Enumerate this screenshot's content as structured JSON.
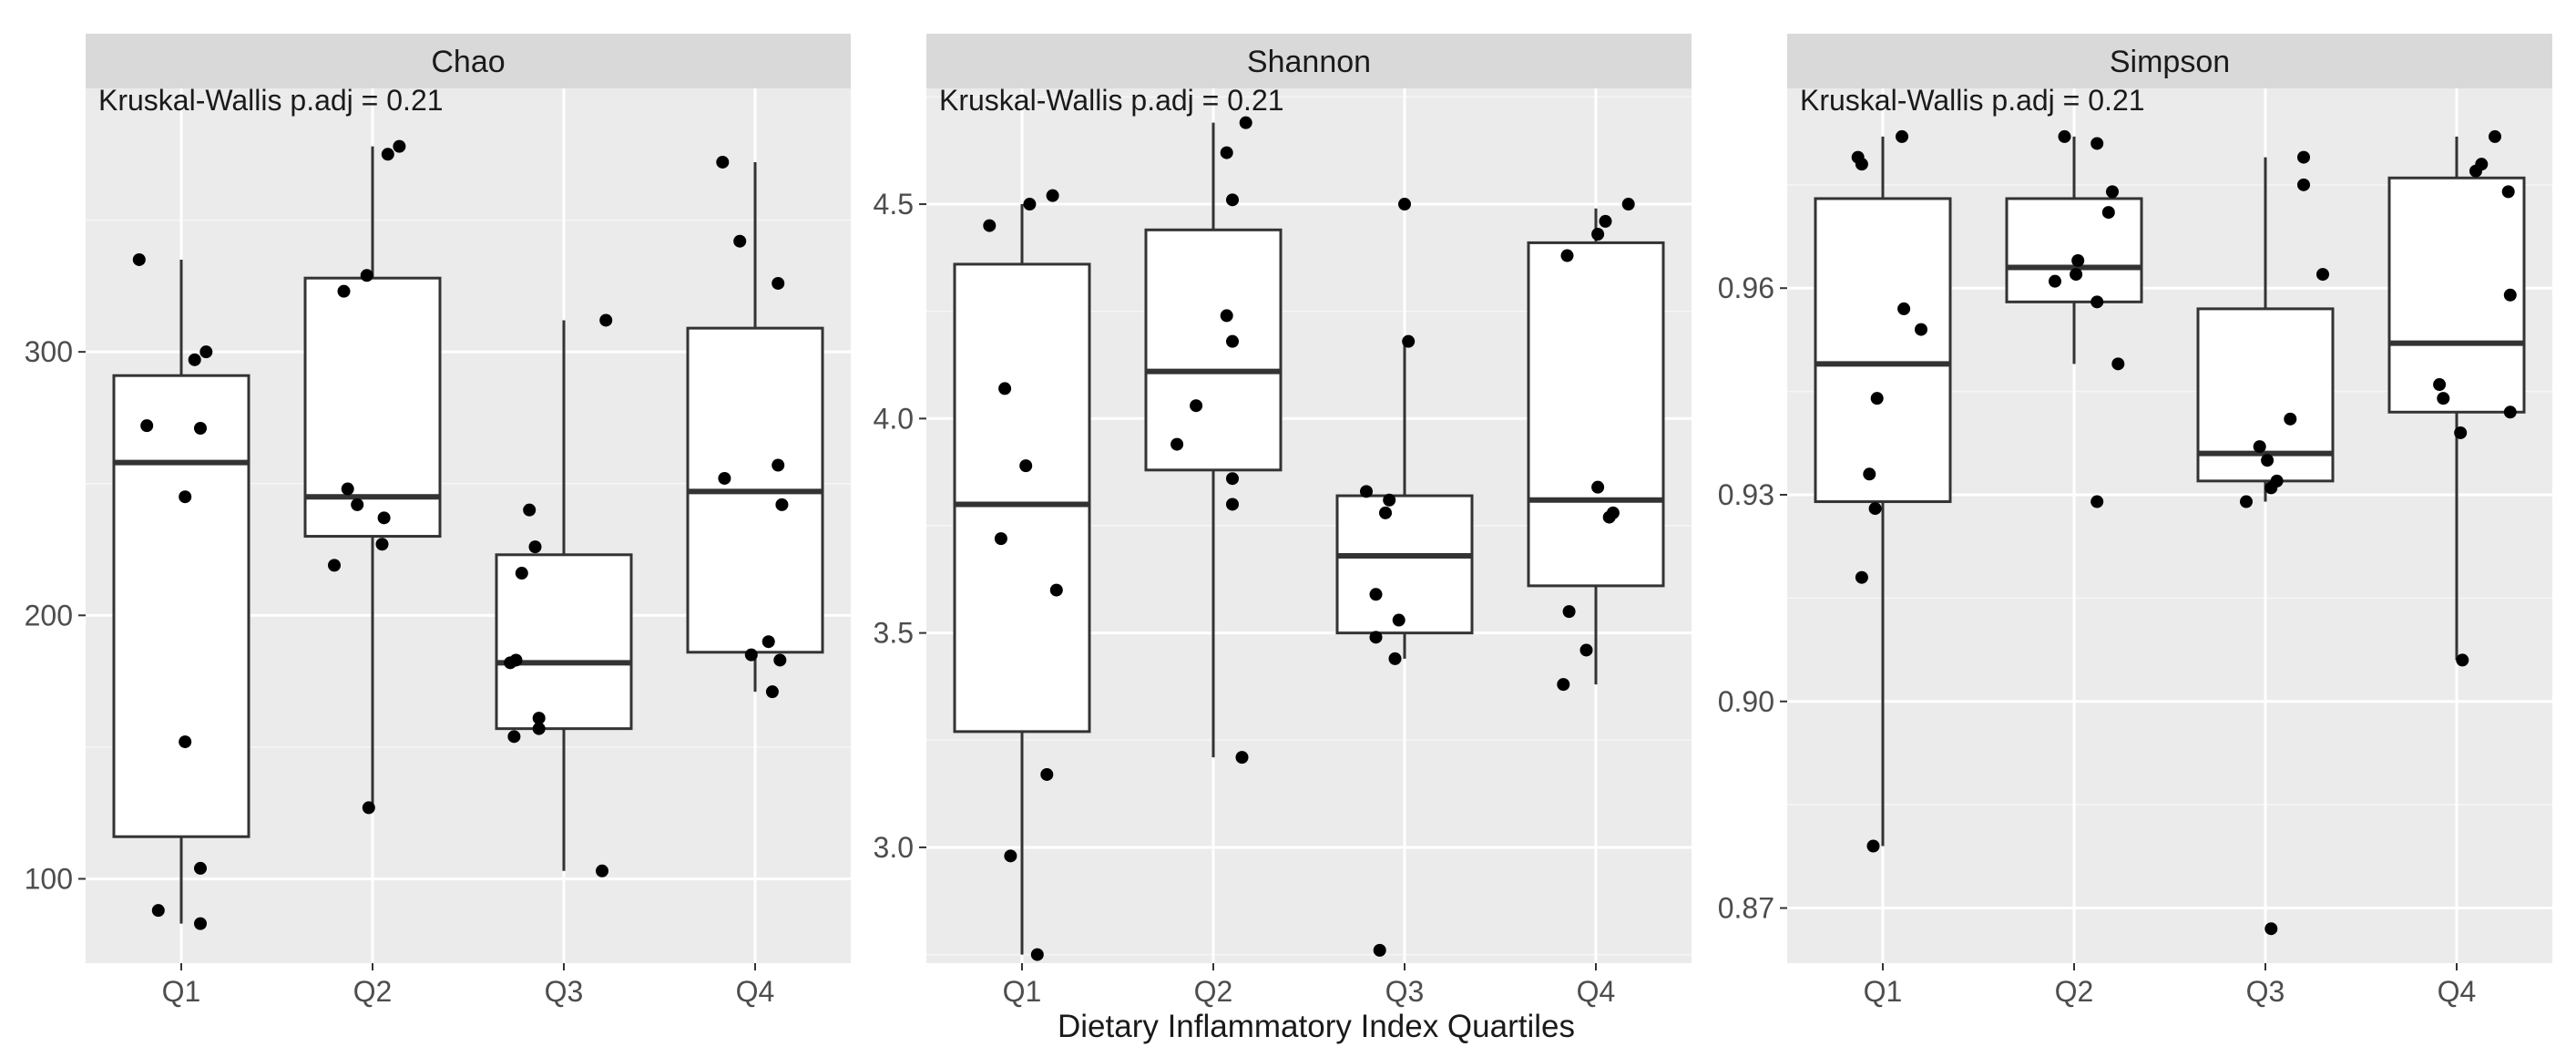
{
  "chart_data": {
    "type": "box",
    "xlabel": "Dietary Inflammatory Index Quartiles",
    "categories": [
      "Q1",
      "Q2",
      "Q3",
      "Q4"
    ],
    "panels": [
      {
        "title": "Chao",
        "annotation": "Kruskal-Wallis p.adj = 0.21",
        "ylim": [
          68,
          400
        ],
        "yticks": [
          100,
          200,
          300
        ],
        "ytick_labels": [
          "100",
          "200",
          "300"
        ],
        "boxes": [
          {
            "category": "Q1",
            "whisker_low": 83,
            "q1": 116,
            "median": 258,
            "q3": 291,
            "whisker_high": 335
          },
          {
            "category": "Q2",
            "whisker_low": 127,
            "q1": 230,
            "median": 245,
            "q3": 328,
            "whisker_high": 378
          },
          {
            "category": "Q3",
            "whisker_low": 103,
            "q1": 157,
            "median": 182,
            "q3": 223,
            "whisker_high": 312
          },
          {
            "category": "Q4",
            "whisker_low": 171,
            "q1": 186,
            "median": 247,
            "q3": 309,
            "whisker_high": 372
          }
        ],
        "points": [
          {
            "category": "Q1",
            "values": [
              335,
              300,
              297,
              272,
              271,
              245,
              152,
              104,
              88,
              83
            ],
            "jitter": [
              -0.22,
              0.13,
              0.07,
              -0.18,
              0.1,
              0.02,
              0.02,
              0.1,
              -0.12,
              0.1
            ]
          },
          {
            "category": "Q2",
            "values": [
              378,
              375,
              329,
              323,
              248,
              242,
              237,
              227,
              219,
              127
            ],
            "jitter": [
              0.14,
              0.08,
              -0.03,
              -0.15,
              -0.13,
              -0.08,
              0.06,
              0.05,
              -0.2,
              -0.02
            ]
          },
          {
            "category": "Q3",
            "values": [
              312,
              240,
              226,
              216,
              183,
              182,
              161,
              157,
              154,
              103
            ],
            "jitter": [
              0.22,
              -0.18,
              -0.15,
              -0.22,
              -0.25,
              -0.28,
              -0.13,
              -0.13,
              -0.26,
              0.2
            ]
          },
          {
            "category": "Q4",
            "values": [
              372,
              342,
              326,
              257,
              252,
              242,
              190,
              185,
              183,
              171
            ],
            "jitter": [
              -0.17,
              -0.08,
              0.12,
              0.12,
              -0.16,
              0.14,
              0.07,
              -0.02,
              0.13,
              0.09
            ]
          }
        ]
      },
      {
        "title": "Shannon",
        "annotation": "Kruskal-Wallis p.adj = 0.21",
        "ylim": [
          2.73,
          4.77
        ],
        "yticks": [
          3.0,
          3.5,
          4.0,
          4.5
        ],
        "ytick_labels": [
          "3.0",
          "3.5",
          "4.0",
          "4.5"
        ],
        "boxes": [
          {
            "category": "Q1",
            "whisker_low": 2.75,
            "q1": 3.27,
            "median": 3.8,
            "q3": 4.36,
            "whisker_high": 4.5
          },
          {
            "category": "Q2",
            "whisker_low": 3.21,
            "q1": 3.88,
            "median": 4.11,
            "q3": 4.44,
            "whisker_high": 4.69
          },
          {
            "category": "Q3",
            "whisker_low": 3.44,
            "q1": 3.5,
            "median": 3.68,
            "q3": 3.82,
            "whisker_high": 4.18
          },
          {
            "category": "Q4",
            "whisker_low": 3.38,
            "q1": 3.61,
            "median": 3.81,
            "q3": 4.41,
            "whisker_high": 4.49
          }
        ],
        "points": [
          {
            "category": "Q1",
            "values": [
              4.52,
              4.5,
              4.45,
              4.07,
              3.89,
              3.72,
              3.6,
              3.17,
              2.98,
              2.75
            ],
            "jitter": [
              0.16,
              0.04,
              -0.17,
              -0.09,
              0.02,
              -0.11,
              0.18,
              0.13,
              -0.06,
              0.08
            ]
          },
          {
            "category": "Q2",
            "values": [
              4.69,
              4.62,
              4.51,
              4.24,
              4.18,
              4.03,
              3.94,
              3.86,
              3.8,
              3.21
            ],
            "jitter": [
              0.17,
              0.07,
              0.1,
              0.07,
              0.1,
              -0.09,
              -0.19,
              0.1,
              0.1,
              0.15
            ]
          },
          {
            "category": "Q3",
            "values": [
              4.5,
              4.18,
              3.83,
              3.81,
              3.78,
              3.59,
              3.53,
              3.49,
              3.44,
              2.76
            ],
            "jitter": [
              0.0,
              0.02,
              -0.2,
              -0.08,
              -0.1,
              -0.15,
              -0.03,
              -0.15,
              -0.05,
              -0.13
            ]
          },
          {
            "category": "Q4",
            "values": [
              4.5,
              4.46,
              4.43,
              4.38,
              3.84,
              3.78,
              3.77,
              3.55,
              3.46,
              3.38
            ],
            "jitter": [
              0.17,
              0.05,
              0.01,
              -0.15,
              0.01,
              0.09,
              0.07,
              -0.14,
              -0.05,
              -0.17
            ]
          }
        ]
      },
      {
        "title": "Simpson",
        "annotation": "Kruskal-Wallis p.adj = 0.21",
        "ylim": [
          0.862,
          0.989
        ],
        "yticks": [
          0.87,
          0.9,
          0.93,
          0.96
        ],
        "ytick_labels": [
          "0.87",
          "0.90",
          "0.93",
          "0.96"
        ],
        "boxes": [
          {
            "category": "Q1",
            "whisker_low": 0.879,
            "q1": 0.929,
            "median": 0.949,
            "q3": 0.973,
            "whisker_high": 0.982
          },
          {
            "category": "Q2",
            "whisker_low": 0.949,
            "q1": 0.958,
            "median": 0.963,
            "q3": 0.973,
            "whisker_high": 0.982
          },
          {
            "category": "Q3",
            "whisker_low": 0.929,
            "q1": 0.932,
            "median": 0.936,
            "q3": 0.957,
            "whisker_high": 0.979
          },
          {
            "category": "Q4",
            "whisker_low": 0.906,
            "q1": 0.942,
            "median": 0.952,
            "q3": 0.976,
            "whisker_high": 0.982
          }
        ],
        "points": [
          {
            "category": "Q1",
            "values": [
              0.982,
              0.979,
              0.978,
              0.957,
              0.954,
              0.944,
              0.933,
              0.928,
              0.918,
              0.879
            ],
            "jitter": [
              0.1,
              -0.13,
              -0.11,
              0.11,
              0.2,
              -0.03,
              -0.07,
              -0.04,
              -0.11,
              -0.05
            ]
          },
          {
            "category": "Q2",
            "values": [
              0.982,
              0.981,
              0.974,
              0.971,
              0.964,
              0.962,
              0.961,
              0.958,
              0.949,
              0.929
            ],
            "jitter": [
              -0.05,
              0.12,
              0.2,
              0.18,
              0.02,
              0.01,
              -0.1,
              0.12,
              0.23,
              0.12
            ]
          },
          {
            "category": "Q3",
            "values": [
              0.979,
              0.975,
              0.962,
              0.941,
              0.937,
              0.935,
              0.932,
              0.931,
              0.929,
              0.867
            ],
            "jitter": [
              0.2,
              0.2,
              0.3,
              0.13,
              -0.03,
              0.01,
              0.06,
              0.03,
              -0.1,
              0.03
            ]
          },
          {
            "category": "Q4",
            "values": [
              0.982,
              0.978,
              0.977,
              0.974,
              0.959,
              0.946,
              0.944,
              0.942,
              0.939,
              0.906
            ],
            "jitter": [
              0.2,
              0.13,
              0.1,
              0.27,
              0.28,
              -0.09,
              -0.07,
              0.28,
              0.02,
              0.03
            ]
          }
        ]
      }
    ],
    "colors": {
      "panel_bg": "#ebebeb",
      "grid_major": "#ffffff",
      "strip_bg": "#d9d9d9",
      "box_fill": "#ffffff",
      "box_line": "#333333",
      "point": "#000000"
    }
  }
}
